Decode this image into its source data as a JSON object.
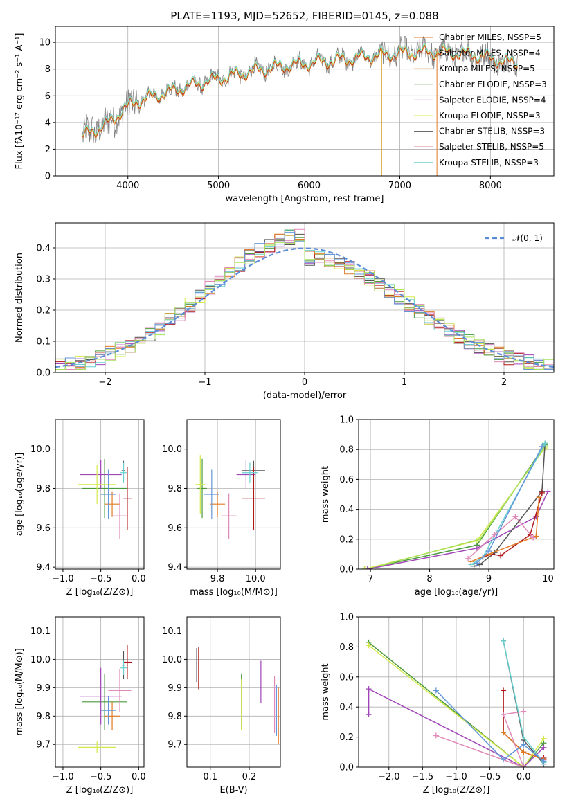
{
  "figure_title": "PLATE=1193, MJD=52652, FIBERID=0145, z=0.088",
  "colors": {
    "c1": "#4a9a3a",
    "c2": "#a045b8",
    "c3": "#d4e84a",
    "c4": "#555555",
    "c5": "#b01818",
    "c6": "#66d0d0",
    "c7": "#e07b24",
    "c8": "#e08ab8",
    "c9": "#6495d8",
    "c10": "#a8e05a",
    "data": "#808080"
  },
  "chart_data": [
    {
      "id": "spectrum",
      "type": "line",
      "xlabel": "wavelength [Angstrom, rest frame]",
      "ylabel": "Flux [fλ10⁻¹⁷ erg cm⁻² s⁻¹ A⁻¹]",
      "xlim": [
        3200,
        8700
      ],
      "ylim": [
        0,
        11.2
      ],
      "xticks": [
        "4000",
        "5000",
        "6000",
        "7000",
        "8000"
      ],
      "yticks": [
        "0",
        "2",
        "4",
        "6",
        "8",
        "10"
      ],
      "continuum": {
        "x": [
          3500,
          3650,
          3800,
          3950,
          4100,
          4300,
          4600,
          5000,
          5400,
          5800,
          6200,
          6600,
          7000,
          7400,
          7800,
          8200
        ],
        "y": [
          3.0,
          3.5,
          4.0,
          5.0,
          5.6,
          6.0,
          6.6,
          7.3,
          7.9,
          8.3,
          8.6,
          8.9,
          9.2,
          9.3,
          9.1,
          8.5
        ]
      },
      "legend": [
        "Chabrier MILES, NSSP=5",
        "Salpeter MILES, NSSP=4",
        "Kroupa MILES, NSSP=5",
        "Chabrier ELODIE, NSSP=3",
        "Salpeter ELODIE, NSSP=4",
        "Kroupa ELODIE, NSSP=3",
        "Chabrier STELIB, NSSP=3",
        "Salpeter STELIB, NSSP=5",
        "Kroupa STELIB, NSSP=3"
      ],
      "legend_position": "right"
    },
    {
      "id": "residuals",
      "type": "line",
      "xlabel": "(data-model)/error",
      "ylabel": "Normed distribution",
      "xlim": [
        -2.5,
        2.5
      ],
      "ylim": [
        0,
        0.48
      ],
      "xticks": [
        "−2",
        "−1",
        "0",
        "1",
        "2"
      ],
      "yticks": [
        "0.0",
        "0.1",
        "0.2",
        "0.3",
        "0.4"
      ],
      "gauss_label": "𝒩(0, 1)",
      "legend_position": "upper-right",
      "grid": true
    },
    {
      "id": "age_vs_Z",
      "type": "scatter",
      "xlabel": "Z [log₁₀(Z/Z⊙)]",
      "ylabel": "age  [log₁₀(age/yr)]",
      "xlim": [
        -1.1,
        0.07
      ],
      "ylim": [
        9.39,
        10.15
      ],
      "xticks": [
        "−1.0",
        "−0.5",
        "0.0"
      ],
      "yticks": [
        "9.4",
        "9.6",
        "9.8",
        "10.0"
      ],
      "points": [
        {
          "x": -0.45,
          "y": 9.8,
          "xe": 0.6,
          "ye": 0.3,
          "c": "c1"
        },
        {
          "x": -0.5,
          "y": 9.87,
          "xe": 0.55,
          "ye": 0.15,
          "c": "c2"
        },
        {
          "x": -0.55,
          "y": 9.82,
          "xe": 0.5,
          "ye": 0.2,
          "c": "c3"
        },
        {
          "x": -0.2,
          "y": 9.89,
          "xe": 0.05,
          "ye": 0.1,
          "c": "c4"
        },
        {
          "x": -0.15,
          "y": 9.75,
          "xe": 0.12,
          "ye": 0.32,
          "c": "c5"
        },
        {
          "x": -0.2,
          "y": 9.88,
          "xe": 0.08,
          "ye": 0.1,
          "c": "c6"
        },
        {
          "x": -0.35,
          "y": 9.72,
          "xe": 0.2,
          "ye": 0.13,
          "c": "c7"
        },
        {
          "x": -0.25,
          "y": 9.66,
          "xe": 0.2,
          "ye": 0.23,
          "c": "c8"
        },
        {
          "x": -0.4,
          "y": 9.77,
          "xe": 0.2,
          "ye": 0.25,
          "c": "c9"
        }
      ]
    },
    {
      "id": "age_vs_mass",
      "type": "scatter",
      "xlabel": "mass [log₁₀(M/M⊙)]",
      "ylabel": "",
      "xlim": [
        9.64,
        10.13
      ],
      "ylim": [
        9.39,
        10.15
      ],
      "xticks": [
        "9.8",
        "10.0"
      ],
      "yticks": [
        "9.4",
        "9.6",
        "9.8",
        "10.0"
      ],
      "points": [
        {
          "x": 9.72,
          "y": 9.8,
          "xe": 0.05,
          "ye": 0.3,
          "c": "c1"
        },
        {
          "x": 9.95,
          "y": 9.87,
          "xe": 0.1,
          "ye": 0.15,
          "c": "c2"
        },
        {
          "x": 9.71,
          "y": 9.82,
          "xe": 0.05,
          "ye": 0.3,
          "c": "c3"
        },
        {
          "x": 9.99,
          "y": 9.89,
          "xe": 0.12,
          "ye": 0.1,
          "c": "c4"
        },
        {
          "x": 9.99,
          "y": 9.75,
          "xe": 0.12,
          "ye": 0.32,
          "c": "c5"
        },
        {
          "x": 9.97,
          "y": 9.88,
          "xe": 0.08,
          "ye": 0.1,
          "c": "c6"
        },
        {
          "x": 9.8,
          "y": 9.72,
          "xe": 0.08,
          "ye": 0.13,
          "c": "c7"
        },
        {
          "x": 9.86,
          "y": 9.66,
          "xe": 0.08,
          "ye": 0.23,
          "c": "c8"
        },
        {
          "x": 9.77,
          "y": 9.77,
          "xe": 0.08,
          "ye": 0.25,
          "c": "c9"
        }
      ]
    },
    {
      "id": "weight_vs_age",
      "type": "line",
      "xlabel": "age  [log₁₀(age/yr)]",
      "ylabel": "mass weight",
      "xlim": [
        6.8,
        10.1
      ],
      "ylim": [
        0,
        1.0
      ],
      "xticks": [
        "7",
        "8",
        "9",
        "10"
      ],
      "yticks": [
        "0.0",
        "0.2",
        "0.4",
        "0.6",
        "0.8",
        "1.0"
      ],
      "grid": true,
      "series": [
        {
          "c": "c1",
          "x": [
            6.9,
            8.8,
            9.95
          ],
          "y": [
            0.0,
            0.16,
            0.83
          ]
        },
        {
          "c": "c3",
          "x": [
            6.9,
            8.8,
            9.95
          ],
          "y": [
            0.0,
            0.19,
            0.81
          ]
        },
        {
          "c": "c10",
          "x": [
            6.95,
            8.85,
            9.95
          ],
          "y": [
            0.0,
            0.2,
            0.82
          ]
        },
        {
          "c": "c2",
          "x": [
            6.95,
            8.8,
            9.8,
            10.0
          ],
          "y": [
            0.0,
            0.14,
            0.35,
            0.52
          ]
        },
        {
          "c": "c4",
          "x": [
            8.75,
            8.85,
            9.1,
            9.9,
            9.95
          ],
          "y": [
            0.02,
            0.03,
            0.11,
            0.52,
            0.84
          ]
        },
        {
          "c": "c5",
          "x": [
            8.9,
            9.05,
            9.2,
            9.7,
            9.9
          ],
          "y": [
            0.08,
            0.1,
            0.09,
            0.23,
            0.51
          ]
        },
        {
          "c": "c6",
          "x": [
            8.7,
            8.9,
            9.95
          ],
          "y": [
            0.03,
            0.08,
            0.84
          ]
        },
        {
          "c": "c7",
          "x": [
            8.7,
            9.0,
            9.8,
            9.85
          ],
          "y": [
            0.05,
            0.1,
            0.22,
            0.48
          ]
        },
        {
          "c": "c8",
          "x": [
            8.65,
            9.1,
            9.45,
            9.75
          ],
          "y": [
            0.07,
            0.23,
            0.35,
            0.21
          ]
        },
        {
          "c": "c9",
          "x": [
            8.8,
            9.0,
            9.9
          ],
          "y": [
            0.04,
            0.12,
            0.82
          ]
        }
      ]
    },
    {
      "id": "mass_vs_Z",
      "type": "scatter",
      "xlabel": "Z [log₁₀(Z/Z⊙)]",
      "ylabel": "mass [log₁₀(M/M⊙)]",
      "xlim": [
        -1.1,
        0.07
      ],
      "ylim": [
        9.62,
        10.15
      ],
      "xticks": [
        "−1.0",
        "−0.5",
        "0.0"
      ],
      "yticks": [
        "9.7",
        "9.8",
        "9.9",
        "10.0",
        "10.1"
      ],
      "points": [
        {
          "x": -0.45,
          "y": 9.85,
          "xe": 0.6,
          "ye": 0.2,
          "c": "c1"
        },
        {
          "x": -0.5,
          "y": 9.87,
          "xe": 0.55,
          "ye": 0.2,
          "c": "c2"
        },
        {
          "x": -0.55,
          "y": 9.69,
          "xe": 0.5,
          "ye": 0.04,
          "c": "c3"
        },
        {
          "x": -0.2,
          "y": 9.98,
          "xe": 0.05,
          "ye": 0.1,
          "c": "c4"
        },
        {
          "x": -0.15,
          "y": 9.99,
          "xe": 0.12,
          "ye": 0.12,
          "c": "c5"
        },
        {
          "x": -0.2,
          "y": 9.97,
          "xe": 0.08,
          "ye": 0.05,
          "c": "c6"
        },
        {
          "x": -0.35,
          "y": 9.8,
          "xe": 0.2,
          "ye": 0.1,
          "c": "c7"
        },
        {
          "x": -0.25,
          "y": 9.89,
          "xe": 0.3,
          "ye": 0.15,
          "c": "c8"
        },
        {
          "x": -0.4,
          "y": 9.82,
          "xe": 0.2,
          "ye": 0.1,
          "c": "c9"
        }
      ]
    },
    {
      "id": "mass_vs_ebv",
      "type": "scatter",
      "xlabel": "E(B-V)",
      "ylabel": "",
      "xlim": [
        0.04,
        0.28
      ],
      "ylim": [
        9.62,
        10.15
      ],
      "xticks": [
        "0.1",
        "0.2"
      ],
      "yticks": [
        "9.7",
        "9.8",
        "9.9",
        "10.0",
        "10.1"
      ],
      "points": [
        {
          "x": 0.065,
          "y": 9.98,
          "ye": 0.12,
          "c": "c4"
        },
        {
          "x": 0.07,
          "y": 9.97,
          "ye": 0.15,
          "c": "c5"
        },
        {
          "x": 0.18,
          "y": 9.85,
          "ye": 0.2,
          "c": "c1"
        },
        {
          "x": 0.18,
          "y": 9.84,
          "ye": 0.18,
          "c": "c3"
        },
        {
          "x": 0.23,
          "y": 9.92,
          "ye": 0.15,
          "c": "c2"
        },
        {
          "x": 0.265,
          "y": 9.84,
          "ye": 0.2,
          "c": "c8"
        },
        {
          "x": 0.27,
          "y": 9.82,
          "ye": 0.18,
          "c": "c9"
        },
        {
          "x": 0.275,
          "y": 9.8,
          "ye": 0.2,
          "c": "c7"
        }
      ]
    },
    {
      "id": "weight_vs_Z",
      "type": "line",
      "xlabel": "Z [log₁₀(Z/Z⊙)]",
      "ylabel": "mass weight",
      "xlim": [
        -2.45,
        0.45
      ],
      "ylim": [
        0,
        1.0
      ],
      "xticks": [
        "−2.0",
        "−1.5",
        "−1.0",
        "−0.5",
        "0.0"
      ],
      "yticks": [
        "0.0",
        "0.2",
        "0.4",
        "0.6",
        "0.8",
        "1.0"
      ],
      "grid": true,
      "series": [
        {
          "c": "c1",
          "x": [
            -2.3,
            0.0,
            0.3
          ],
          "y": [
            0.83,
            0.0,
            0.16
          ]
        },
        {
          "c": "c3",
          "x": [
            -2.3,
            0.0,
            0.3
          ],
          "y": [
            0.81,
            0.0,
            0.19
          ]
        },
        {
          "c": "c2",
          "x": [
            -2.3,
            -2.3,
            0.0,
            0.3
          ],
          "y": [
            0.35,
            0.52,
            0.0,
            0.13
          ]
        },
        {
          "c": "c4",
          "x": [
            -0.3,
            0.0,
            0.3
          ],
          "y": [
            0.84,
            0.18,
            0.02
          ]
        },
        {
          "c": "c6",
          "x": [
            -0.3,
            0.0,
            0.3
          ],
          "y": [
            0.84,
            0.2,
            0.03
          ]
        },
        {
          "c": "c5",
          "x": [
            -0.3,
            -0.3,
            0.0,
            0.3,
            0.3
          ],
          "y": [
            0.51,
            0.23,
            0.1,
            0.05,
            0.06
          ]
        },
        {
          "c": "c7",
          "x": [
            -0.3,
            0.0,
            0.3
          ],
          "y": [
            0.23,
            0.1,
            0.05
          ]
        },
        {
          "c": "c8",
          "x": [
            -1.3,
            0.0,
            -0.3,
            0.0
          ],
          "y": [
            0.21,
            0.0,
            0.35,
            0.37
          ]
        },
        {
          "c": "c9",
          "x": [
            -1.3,
            -0.3,
            0.0,
            0.3
          ],
          "y": [
            0.51,
            0.05,
            0.15,
            0.04
          ]
        }
      ]
    }
  ]
}
